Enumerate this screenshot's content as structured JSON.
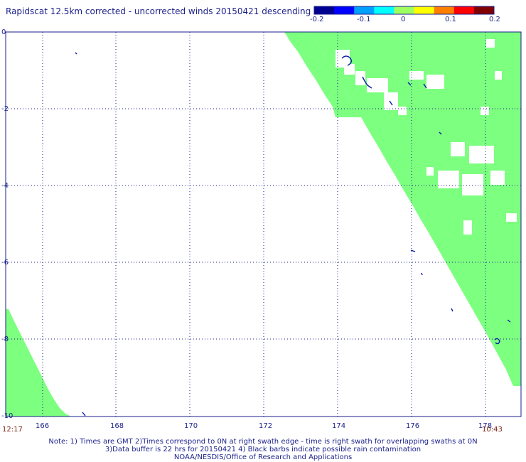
{
  "title": "Rapidscat 12.5km corrected - uncorrected winds 20150421 descending",
  "colorbar": {
    "colors": [
      "#000090",
      "#0000ff",
      "#00a0ff",
      "#00ffff",
      "#a0ff60",
      "#ffff00",
      "#ff8000",
      "#ff0000",
      "#800000"
    ],
    "tick_labels": [
      "-0.2",
      "-0.1",
      "0",
      "0.1",
      "0.2"
    ]
  },
  "map": {
    "fill_color": "#7dff80",
    "x_tick_labels": [
      "166",
      "168",
      "170",
      "172",
      "174",
      "176",
      "178"
    ],
    "y_tick_labels": [
      "0",
      "-2",
      "-4",
      "-6",
      "-8",
      "-10"
    ],
    "time_left": "12:17",
    "time_right": "10:43"
  },
  "notes": [
    "Note: 1) Times are GMT 2)Times correspond to 0N at right swath edge - time is right swath for overlapping swaths at 0N",
    "3)Data buffer is 22 hrs for 20150421 4) Black barbs indicate possible rain contamination",
    "NOAA/NESDIS/Office of Research and Applications"
  ]
}
